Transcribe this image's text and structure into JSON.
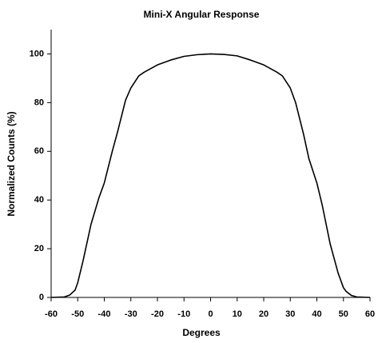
{
  "chart_data": {
    "type": "line",
    "title": "Mini-X Angular Response",
    "xlabel": "Degrees",
    "ylabel": "Normalized Counts (%)",
    "x": [
      -60,
      -55,
      -53,
      -51,
      -50,
      -48,
      -45,
      -42,
      -40,
      -37,
      -35,
      -32,
      -30,
      -27,
      -25,
      -20,
      -15,
      -10,
      -5,
      0,
      5,
      10,
      15,
      20,
      25,
      27,
      30,
      32,
      35,
      37,
      40,
      42,
      45,
      48,
      50,
      51,
      53,
      55,
      60
    ],
    "series": [
      {
        "name": "Angular Response",
        "color": "#000000",
        "values": [
          0,
          0.2,
          1,
          3,
          6,
          15,
          30,
          41,
          47,
          60,
          68,
          81,
          86,
          91,
          92.5,
          95.5,
          97.5,
          99,
          99.7,
          100,
          99.8,
          99.2,
          97.5,
          95.5,
          92.5,
          91,
          86,
          80,
          67,
          57,
          47,
          38,
          22,
          10,
          4,
          2.5,
          0.8,
          0.2,
          0
        ]
      }
    ],
    "xlim": [
      -60,
      60
    ],
    "xticks": [
      -60,
      -50,
      -40,
      -30,
      -20,
      -10,
      0,
      10,
      20,
      30,
      40,
      50,
      60
    ],
    "ylim": [
      0,
      110
    ],
    "yticks": [
      0,
      20,
      40,
      60,
      80,
      100
    ]
  }
}
